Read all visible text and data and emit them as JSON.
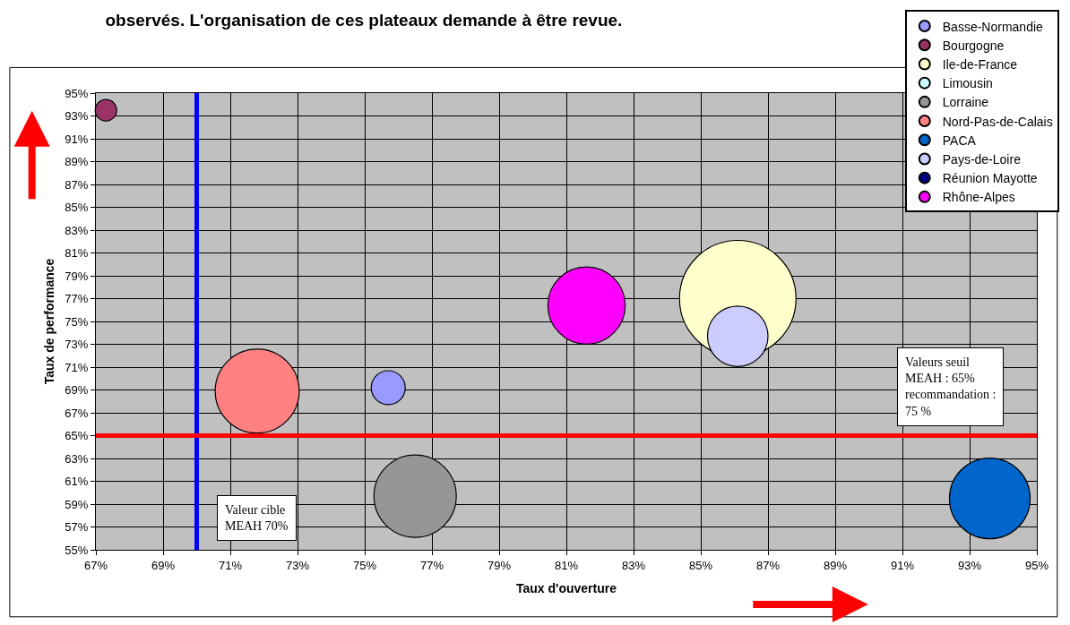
{
  "chart_data": {
    "type": "bubble",
    "title": "observés. L'organisation de ces plateaux demande à être revue.",
    "xlabel": "Taux d'ouverture",
    "ylabel": "Taux de performance",
    "series": [
      {
        "name": "Basse-Normandie",
        "color": "#9999ff",
        "x": [
          75.7
        ],
        "values": [
          69.2
        ],
        "sizes": [
          0.085
        ]
      },
      {
        "name": "Bourgogne",
        "color": "#993366",
        "x": [
          67.3
        ],
        "values": [
          93.5
        ],
        "sizes": [
          0.034
        ]
      },
      {
        "name": "Ile-de-France",
        "color": "#ffffcc",
        "x": [
          86.1
        ],
        "values": [
          77.0
        ],
        "sizes": [
          1
        ]
      },
      {
        "name": "Limousin",
        "color": "#ccffff",
        "x": [
          null
        ],
        "values": [
          null
        ],
        "sizes": [
          null
        ]
      },
      {
        "name": "Lorraine",
        "color": "#969696",
        "x": [
          76.5
        ],
        "values": [
          59.7
        ],
        "sizes": [
          0.5
        ]
      },
      {
        "name": "Nord-Pas-de-Calais",
        "color": "#ff8080",
        "x": [
          71.8
        ],
        "values": [
          68.9
        ],
        "sizes": [
          0.52
        ]
      },
      {
        "name": "PACA",
        "color": "#0066cc",
        "x": [
          93.6
        ],
        "values": [
          59.5
        ],
        "sizes": [
          0.48
        ]
      },
      {
        "name": "Pays-de-Loire",
        "color": "#ccccff",
        "x": [
          86.1
        ],
        "values": [
          73.7
        ],
        "sizes": [
          0.27
        ]
      },
      {
        "name": "Réunion Mayotte",
        "color": "#000080",
        "x": [
          null
        ],
        "values": [
          null
        ],
        "sizes": [
          null
        ]
      },
      {
        "name": "Rhône-Alpes",
        "color": "#ff00ff",
        "x": [
          81.6
        ],
        "values": [
          76.4
        ],
        "sizes": [
          0.44
        ]
      }
    ],
    "xlim": [
      67,
      95
    ],
    "xticks": [
      {
        "value": 67,
        "label": "67%"
      },
      {
        "value": 69,
        "label": "69%"
      },
      {
        "value": 71,
        "label": "71%"
      },
      {
        "value": 73,
        "label": "73%"
      },
      {
        "value": 75,
        "label": "75%"
      },
      {
        "value": 77,
        "label": "77%"
      },
      {
        "value": 79,
        "label": "79%"
      },
      {
        "value": 81,
        "label": "81%"
      },
      {
        "value": 83,
        "label": "83%"
      },
      {
        "value": 85,
        "label": "85%"
      },
      {
        "value": 87,
        "label": "87%"
      },
      {
        "value": 89,
        "label": "89%"
      },
      {
        "value": 91,
        "label": "91%"
      },
      {
        "value": 93,
        "label": "93%"
      },
      {
        "value": 95,
        "label": "95%"
      }
    ],
    "ylim": [
      55,
      95
    ],
    "yticks": [
      {
        "value": 55,
        "label": "55%"
      },
      {
        "value": 57,
        "label": "57%"
      },
      {
        "value": 59,
        "label": "59%"
      },
      {
        "value": 61,
        "label": "61%"
      },
      {
        "value": 63,
        "label": "63%"
      },
      {
        "value": 65,
        "label": "65%"
      },
      {
        "value": 67,
        "label": "67%"
      },
      {
        "value": 69,
        "label": "69%"
      },
      {
        "value": 71,
        "label": "71%"
      },
      {
        "value": 73,
        "label": "73%"
      },
      {
        "value": 75,
        "label": "75%"
      },
      {
        "value": 77,
        "label": "77%"
      },
      {
        "value": 79,
        "label": "79%"
      },
      {
        "value": 81,
        "label": "81%"
      },
      {
        "value": 83,
        "label": "83%"
      },
      {
        "value": 85,
        "label": "85%"
      },
      {
        "value": 87,
        "label": "87%"
      },
      {
        "value": 89,
        "label": "89%"
      },
      {
        "value": 91,
        "label": "91%"
      },
      {
        "value": 93,
        "label": "93%"
      },
      {
        "value": 95,
        "label": "95%"
      }
    ],
    "ref_lines": [
      {
        "axis": "x",
        "value": 70,
        "label": "Valeur cible\nMEAH 70%",
        "color": "#0000ff"
      },
      {
        "axis": "y",
        "value": 65,
        "label": "Valeurs seuil\nMEAH : 65%\nrecommandation :\n75 %",
        "color": "#ff0000"
      }
    ],
    "grid": true,
    "legend": "top right",
    "marker": "circle"
  }
}
